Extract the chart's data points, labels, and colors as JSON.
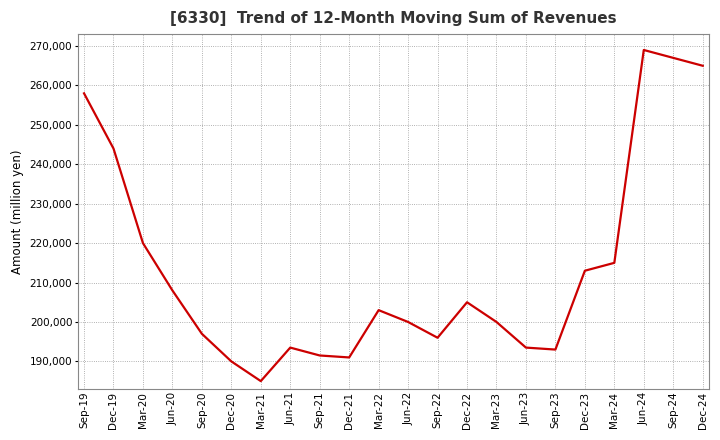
{
  "title": "[6330]  Trend of 12-Month Moving Sum of Revenues",
  "ylabel": "Amount (million yen)",
  "line_color": "#cc0000",
  "background_color": "#ffffff",
  "plot_bg_color": "#ffffff",
  "grid_color": "#999999",
  "xlabels": [
    "Sep-19",
    "Dec-19",
    "Mar-20",
    "Jun-20",
    "Sep-20",
    "Dec-20",
    "Mar-21",
    "Jun-21",
    "Sep-21",
    "Dec-21",
    "Mar-22",
    "Jun-22",
    "Sep-22",
    "Dec-22",
    "Mar-23",
    "Jun-23",
    "Sep-23",
    "Dec-23",
    "Mar-24",
    "Jun-24",
    "Sep-24",
    "Dec-24"
  ],
  "values": [
    258000,
    244000,
    220000,
    208000,
    197000,
    190000,
    185000,
    193500,
    191500,
    191000,
    203000,
    200000,
    196000,
    205000,
    200000,
    193500,
    193000,
    213000,
    215000,
    269000,
    267000,
    265000
  ],
  "ylim": [
    183000,
    273000
  ],
  "yticks": [
    190000,
    200000,
    210000,
    220000,
    230000,
    240000,
    250000,
    260000,
    270000
  ],
  "title_fontsize": 11,
  "ylabel_fontsize": 8.5,
  "tick_fontsize": 7.5,
  "linewidth": 1.6,
  "figsize": [
    7.2,
    4.4
  ],
  "dpi": 100
}
